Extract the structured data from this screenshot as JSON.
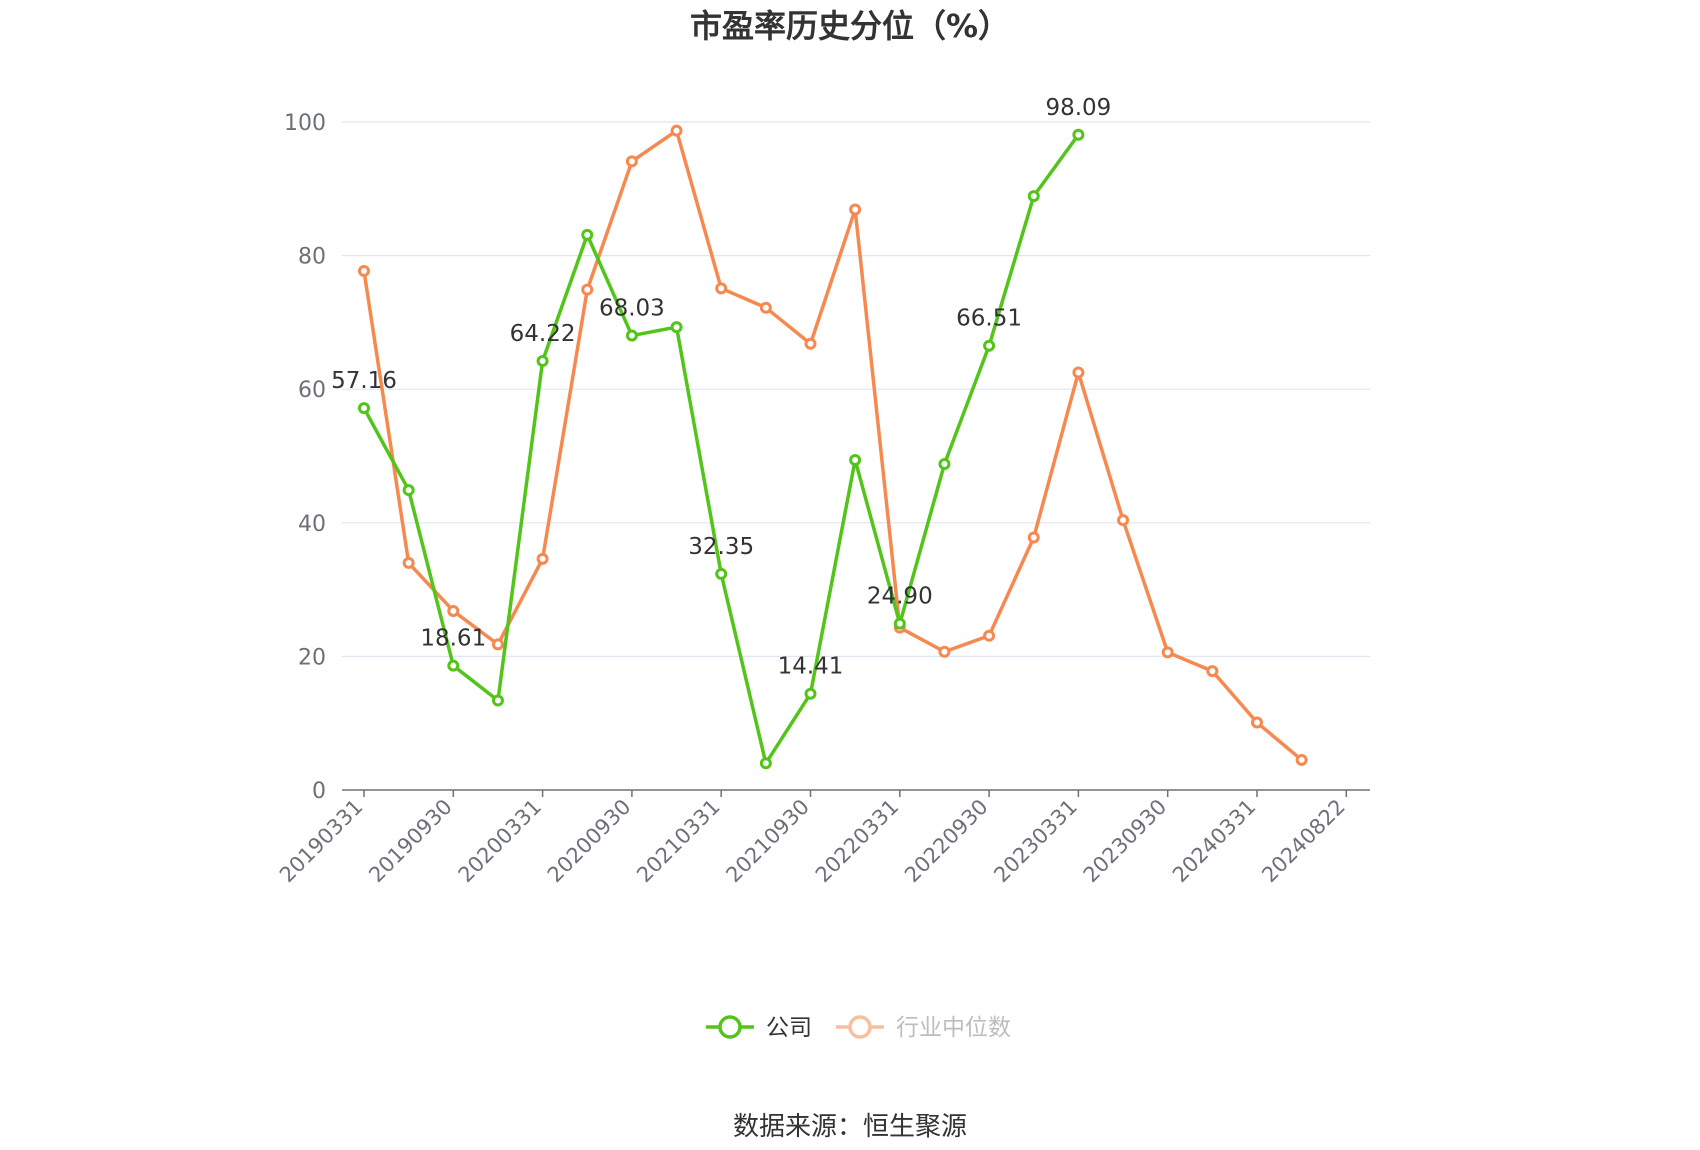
{
  "chart_data": {
    "type": "line",
    "title": "市盈率历史分位（%）",
    "xlabel": "",
    "ylabel": "",
    "ylim": [
      0,
      100
    ],
    "y_ticks": [
      0,
      20,
      40,
      60,
      80,
      100
    ],
    "grid": true,
    "legend_position": "bottom",
    "x": [
      "20190331",
      "20190630",
      "20190930",
      "20191231",
      "20200331",
      "20200630",
      "20200930",
      "20201231",
      "20210331",
      "20210630",
      "20210930",
      "20211231",
      "20220331",
      "20220630",
      "20220930",
      "20221231",
      "20230331",
      "20230630",
      "20230930",
      "20231231",
      "20240331",
      "20240630",
      "20240822"
    ],
    "x_tick_labels": [
      "20190331",
      "20190930",
      "20200331",
      "20200930",
      "20210331",
      "20210930",
      "20220331",
      "20220930",
      "20230331",
      "20230930",
      "20240331",
      "20240822"
    ],
    "series": [
      {
        "name": "公司",
        "color": "#52c41a",
        "values": [
          57.16,
          44.9,
          18.61,
          13.4,
          64.22,
          83.1,
          68.03,
          69.3,
          32.35,
          4.0,
          14.41,
          49.4,
          24.9,
          48.8,
          66.51,
          88.9,
          98.09,
          null,
          null,
          null,
          null,
          null,
          null
        ],
        "labels": {
          "0": "57.16",
          "2": "18.61",
          "4": "64.22",
          "6": "68.03",
          "8": "32.35",
          "10": "14.41",
          "12": "24.90",
          "14": "66.51",
          "16": "98.09"
        }
      },
      {
        "name": "行业中位数",
        "color": "#f5894f",
        "values": [
          77.7,
          34.0,
          26.8,
          21.8,
          34.6,
          74.9,
          94.1,
          98.7,
          75.1,
          72.2,
          66.8,
          86.9,
          24.3,
          20.7,
          23.1,
          37.8,
          62.5,
          40.4,
          20.6,
          17.8,
          10.1,
          4.5,
          null
        ]
      }
    ]
  },
  "footer": {
    "source": "数据来源：恒生聚源"
  }
}
